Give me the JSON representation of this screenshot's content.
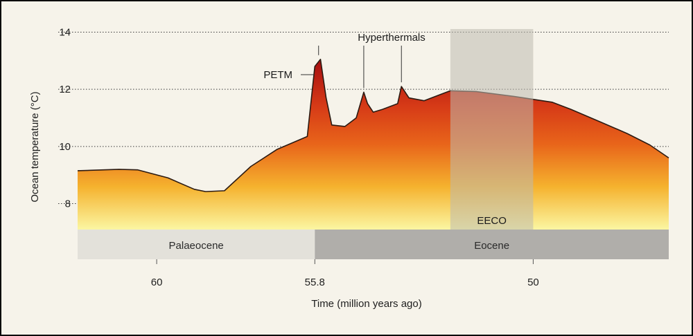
{
  "chart_data": {
    "type": "area",
    "xlabel": "Time (million years ago)",
    "ylabel": "Ocean temperature (°C)",
    "xlim": [
      62.1,
      46.4
    ],
    "ylim": [
      6.1,
      14.4
    ],
    "x_reversed": true,
    "grid": "dotted horizontal lines at y ticks",
    "x_ticks": [
      {
        "value": 60,
        "label": "60"
      },
      {
        "value": 55.8,
        "label": "55.8"
      },
      {
        "value": 50,
        "label": "50"
      }
    ],
    "y_ticks": [
      {
        "value": 8,
        "label": "8"
      },
      {
        "value": 10,
        "label": "10"
      },
      {
        "value": 12,
        "label": "12"
      },
      {
        "value": 14,
        "label": "14"
      }
    ],
    "series": [
      {
        "x": [
          62.1,
          61.0,
          60.5,
          59.7,
          59.0,
          58.7,
          58.2,
          57.5,
          56.8,
          56.0,
          55.8,
          55.65,
          55.5,
          55.35,
          55.0,
          54.7,
          54.5,
          54.4,
          54.25,
          54.0,
          53.6,
          53.5,
          53.3,
          52.9,
          52.2,
          51.5,
          50.5,
          49.5,
          49.0,
          48.2,
          47.5,
          46.9,
          46.4
        ],
        "y": [
          9.15,
          9.2,
          9.18,
          8.9,
          8.5,
          8.42,
          8.45,
          9.3,
          9.9,
          10.35,
          12.8,
          13.05,
          11.7,
          10.75,
          10.7,
          11.0,
          11.9,
          11.5,
          11.2,
          11.3,
          11.5,
          12.1,
          11.7,
          11.6,
          11.95,
          11.92,
          11.75,
          11.55,
          11.3,
          10.85,
          10.45,
          10.05,
          9.6
        ]
      }
    ],
    "periods": [
      {
        "label": "Palaeocene",
        "x_start": 62.1,
        "x_end": 55.8
      },
      {
        "label": "Eocene",
        "x_start": 55.8,
        "x_end": 46.4
      }
    ],
    "highlight": {
      "label": "EECO",
      "x_start": 52.2,
      "x_end": 50.0
    },
    "annotations": [
      {
        "label": "PETM",
        "x": 55.7,
        "y": 13.05
      },
      {
        "label": "Hyperthermals",
        "targets": [
          {
            "x": 55.7,
            "y": 13.05
          },
          {
            "x": 54.5,
            "y": 11.9
          },
          {
            "x": 53.5,
            "y": 12.1
          }
        ]
      }
    ],
    "colors": {
      "fill_top": "#a50d10",
      "fill_mid": "#e8641a",
      "fill_low": "#f5b22e",
      "fill_bottom": "#fbf6a2",
      "palaeocene_band": "#e3e1da",
      "eocene_band": "#b0aeaa",
      "eeco_shade": "#bdb9ae"
    }
  }
}
